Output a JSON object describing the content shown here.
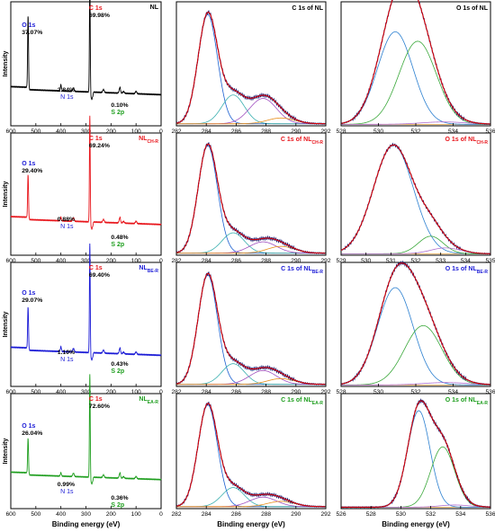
{
  "figure": {
    "xlabel": "Binding energy (eV)",
    "ylabel": "Intensity"
  },
  "colors": {
    "survey": [
      "#000000",
      "#e8151b",
      "#1a1ad6",
      "#1e9e1e"
    ],
    "O": "#1a1ad6",
    "C": "#e8151b",
    "N": "#1a1ad6",
    "S": "#1e9e1e",
    "envelope": "#e00000",
    "raw": "#1a1a6e",
    "comp": [
      "#1a5fd0",
      "#3bb0b0",
      "#a050c0",
      "#e8901e"
    ],
    "ocomp": [
      "#2a7fd0",
      "#3aa83a",
      "#b070d0"
    ]
  },
  "rows": [
    {
      "survey": {
        "name": "NL",
        "sub": "",
        "pct": {
          "O": "37.07%",
          "C": "69.98%",
          "N": "2.84%",
          "S": "0.10%"
        },
        "lbl": {
          "O": "O 1s",
          "C": "C 1s",
          "N": "N 1s",
          "S": "S 2p"
        }
      },
      "c1s": {
        "title": "C 1s of NL",
        "sub": ""
      },
      "o1s": {
        "title": "O 1s of NL",
        "sub": ""
      }
    },
    {
      "survey": {
        "name": "NL",
        "sub": "CH-R",
        "pct": {
          "O": "29.40%",
          "C": "69.24%",
          "N": "0.88%",
          "S": "0.48%"
        },
        "lbl": {
          "O": "O 1s",
          "C": "C 1s",
          "N": "N 1s",
          "S": "S 2p"
        }
      },
      "c1s": {
        "title": "C 1s of NL",
        "sub": "CH-R"
      },
      "o1s": {
        "title": "O 1s of NL",
        "sub": "CH-R"
      }
    },
    {
      "survey": {
        "name": "NL",
        "sub": "BE-R",
        "pct": {
          "O": "29.07%",
          "C": "69.40%",
          "N": "1.10%",
          "S": "0.43%"
        },
        "lbl": {
          "O": "O 1s",
          "C": "C 1s",
          "N": "N 1s",
          "S": "S 2p"
        }
      },
      "c1s": {
        "title": "C 1s of NL",
        "sub": "BE-R"
      },
      "o1s": {
        "title": "O 1s of NL",
        "sub": "BE-R"
      }
    },
    {
      "survey": {
        "name": "NL",
        "sub": "EA-R",
        "pct": {
          "O": "26.04%",
          "C": "72.60%",
          "N": "0.99%",
          "S": "0.36%"
        },
        "lbl": {
          "O": "O 1s",
          "C": "C 1s",
          "N": "N 1s",
          "S": "S 2p"
        }
      },
      "c1s": {
        "title": "C 1s of NL",
        "sub": "EA-R"
      },
      "o1s": {
        "title": "O 1s of NL",
        "sub": "EA-R"
      }
    }
  ],
  "chart_data": [
    {
      "type": "line",
      "panel": "survey",
      "xlim": [
        600,
        0
      ],
      "xticks": [
        600,
        500,
        400,
        300,
        200,
        100,
        0
      ],
      "peaks_eV": {
        "O 1s": 531,
        "N 1s": 400,
        "C 1s": 284.5,
        "S 2p": 164
      },
      "series": [
        {
          "name": "NL",
          "peak_heights": {
            "O 1s": 0.62,
            "C 1s": 0.95,
            "N 1s": 0.05,
            "S 2p": 0.02
          }
        },
        {
          "name": "NL CH-R",
          "peak_heights": {
            "O 1s": 0.38,
            "C 1s": 0.92,
            "N 1s": 0.03,
            "S 2p": 0.02
          }
        },
        {
          "name": "NL BE-R",
          "peak_heights": {
            "O 1s": 0.36,
            "C 1s": 0.93,
            "N 1s": 0.04,
            "S 2p": 0.02
          }
        },
        {
          "name": "NL EA-R",
          "peak_heights": {
            "O 1s": 0.33,
            "C 1s": 0.95,
            "N 1s": 0.03,
            "S 2p": 0.02
          }
        }
      ]
    },
    {
      "type": "line",
      "panel": "C 1s",
      "xlim": [
        282,
        292
      ],
      "xticks": [
        282,
        284,
        286,
        288,
        290,
        292
      ],
      "components_eV": [
        284.1,
        285.8,
        287.8,
        289.0
      ],
      "series": [
        {
          "name": "NL",
          "amps": [
            0.95,
            0.25,
            0.22,
            0.05
          ]
        },
        {
          "name": "NL CH-R",
          "amps": [
            0.95,
            0.18,
            0.1,
            0.06
          ]
        },
        {
          "name": "NL BE-R",
          "amps": [
            0.95,
            0.18,
            0.12,
            0.05
          ]
        },
        {
          "name": "NL EA-R",
          "amps": [
            0.96,
            0.18,
            0.09,
            0.05
          ]
        }
      ]
    },
    {
      "type": "line",
      "panel": "O 1s",
      "xlim": [
        528,
        536
      ],
      "xticks": [
        528,
        530,
        532,
        534,
        536
      ],
      "series": [
        {
          "name": "NL",
          "xticks": [
            528,
            530,
            532,
            534,
            536
          ],
          "centers": [
            530.9,
            532.1,
            533.5
          ],
          "amps": [
            0.78,
            0.7,
            0.02
          ]
        },
        {
          "name": "NL CH-R",
          "xticks": [
            529,
            530,
            531,
            532,
            533,
            534,
            535
          ],
          "centers": [
            531.1,
            532.6,
            533.2
          ],
          "amps": [
            0.93,
            0.15,
            0.05
          ]
        },
        {
          "name": "NL BE-R",
          "xticks": [
            528,
            530,
            532,
            534,
            536
          ],
          "centers": [
            530.9,
            532.4,
            533.6
          ],
          "amps": [
            0.82,
            0.5,
            0.02
          ]
        },
        {
          "name": "NL EA-R",
          "xticks": [
            526,
            528,
            530,
            532,
            534,
            536
          ],
          "centers": [
            531.2,
            532.8,
            533.6
          ],
          "amps": [
            0.88,
            0.55,
            0.02
          ]
        }
      ]
    }
  ]
}
